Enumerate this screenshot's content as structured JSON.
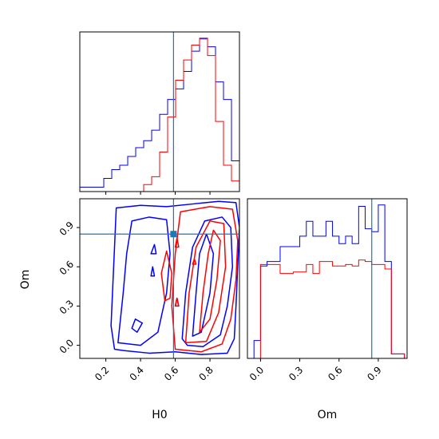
{
  "chart_data": {
    "type": "corner",
    "parameters": [
      "H0",
      "Om"
    ],
    "truth": {
      "H0": 0.59,
      "Om": 0.85
    },
    "colors": {
      "series_a": "#0000ff",
      "series_b": "#ff0000",
      "truth": "#1f77b4"
    },
    "panels": [
      {
        "id": "hist-H0",
        "type": "histogram-step",
        "xlim": [
          0.05,
          0.97
        ],
        "bin_edges": [
          0.05,
          0.096,
          0.142,
          0.188,
          0.234,
          0.28,
          0.326,
          0.372,
          0.418,
          0.464,
          0.51,
          0.556,
          0.602,
          0.648,
          0.694,
          0.74,
          0.786,
          0.832,
          0.878,
          0.924,
          0.97
        ],
        "series": [
          {
            "color_key": "series_a",
            "counts": [
              0.5,
              0.5,
              0.5,
              1.5,
              2.5,
              3,
              4,
              5,
              5.8,
              7,
              8.8,
              10.5,
              11.7,
              13.7,
              16,
              17.4,
              16.5,
              12.5,
              10.5,
              3.5
            ]
          },
          {
            "color_key": "series_b",
            "counts": [
              0,
              0,
              0,
              0,
              0,
              0,
              0,
              0,
              0.8,
              1.7,
              4.5,
              8.5,
              12.7,
              15,
              16.7,
              17.5,
              15.5,
              8,
              3,
              1.2
            ]
          }
        ],
        "x_ticks": [
          0.2,
          0.4,
          0.6,
          0.8
        ],
        "x_tick_labels_shown": false
      },
      {
        "id": "contour-H0-Om",
        "type": "contour",
        "xlim": [
          0.05,
          0.97
        ],
        "ylim": [
          -0.1,
          1.12
        ],
        "x_ticks": [
          0.2,
          0.4,
          0.6,
          0.8
        ],
        "x_tick_labels": [
          "0.2",
          "0.4",
          "0.6",
          "0.8"
        ],
        "y_ticks": [
          0.0,
          0.3,
          0.6,
          0.9
        ],
        "y_tick_labels": [
          "0.0",
          "0.3",
          "0.6",
          "0.9"
        ],
        "xlabel": "H0",
        "ylabel": "Om",
        "series": [
          {
            "color_key": "series_a",
            "contours": [
              [
                [
                  0.25,
                  -0.03
                ],
                [
                  0.23,
                  0.15
                ],
                [
                  0.24,
                  0.45
                ],
                [
                  0.25,
                  0.75
                ],
                [
                  0.26,
                  1.05
                ],
                [
                  0.4,
                  1.07
                ],
                [
                  0.55,
                  1.06
                ],
                [
                  0.7,
                  1.08
                ],
                [
                  0.85,
                  1.1
                ],
                [
                  0.95,
                  1.09
                ],
                [
                  0.97,
                  0.9
                ],
                [
                  0.96,
                  0.6
                ],
                [
                  0.95,
                  0.3
                ],
                [
                  0.94,
                  0.05
                ],
                [
                  0.9,
                  -0.06
                ],
                [
                  0.75,
                  -0.07
                ],
                [
                  0.6,
                  -0.05
                ],
                [
                  0.45,
                  -0.06
                ],
                [
                  0.3,
                  -0.04
                ],
                [
                  0.25,
                  -0.03
                ]
              ],
              [
                [
                  0.64,
                  0.05
                ],
                [
                  0.66,
                  0.4
                ],
                [
                  0.7,
                  0.75
                ],
                [
                  0.77,
                  0.95
                ],
                [
                  0.87,
                  0.98
                ],
                [
                  0.92,
                  0.9
                ],
                [
                  0.93,
                  0.6
                ],
                [
                  0.9,
                  0.3
                ],
                [
                  0.86,
                  0.08
                ],
                [
                  0.76,
                  -0.01
                ],
                [
                  0.67,
                  0.0
                ],
                [
                  0.64,
                  0.05
                ]
              ],
              [
                [
                  0.27,
                  0.02
                ],
                [
                  0.3,
                  0.4
                ],
                [
                  0.32,
                  0.7
                ],
                [
                  0.35,
                  0.95
                ],
                [
                  0.45,
                  0.98
                ],
                [
                  0.55,
                  0.96
                ],
                [
                  0.57,
                  0.7
                ],
                [
                  0.55,
                  0.4
                ],
                [
                  0.5,
                  0.1
                ],
                [
                  0.4,
                  0.0
                ],
                [
                  0.27,
                  0.02
                ]
              ],
              [
                [
                  0.7,
                  0.07
                ],
                [
                  0.72,
                  0.4
                ],
                [
                  0.74,
                  0.7
                ],
                [
                  0.78,
                  0.85
                ],
                [
                  0.82,
                  0.7
                ],
                [
                  0.8,
                  0.4
                ],
                [
                  0.75,
                  0.1
                ],
                [
                  0.7,
                  0.07
                ]
              ],
              [
                [
                  0.35,
                  0.13
                ],
                [
                  0.37,
                  0.2
                ],
                [
                  0.41,
                  0.17
                ],
                [
                  0.38,
                  0.1
                ],
                [
                  0.35,
                  0.13
                ]
              ],
              [
                [
                  0.46,
                  0.53
                ],
                [
                  0.47,
                  0.6
                ],
                [
                  0.48,
                  0.53
                ],
                [
                  0.46,
                  0.53
                ]
              ],
              [
                [
                  0.46,
                  0.7
                ],
                [
                  0.48,
                  0.77
                ],
                [
                  0.49,
                  0.7
                ],
                [
                  0.46,
                  0.7
                ]
              ],
              [
                [
                  0.6,
                  0.3
                ],
                [
                  0.61,
                  0.36
                ],
                [
                  0.62,
                  0.3
                ],
                [
                  0.6,
                  0.3
                ]
              ]
            ]
          },
          {
            "color_key": "series_b",
            "contours": [
              [
                [
                  0.6,
                  -0.03
                ],
                [
                  0.58,
                  0.3
                ],
                [
                  0.6,
                  0.7
                ],
                [
                  0.63,
                  1.02
                ],
                [
                  0.8,
                  1.06
                ],
                [
                  0.93,
                  1.04
                ],
                [
                  0.96,
                  0.8
                ],
                [
                  0.95,
                  0.5
                ],
                [
                  0.92,
                  0.2
                ],
                [
                  0.87,
                  0.01
                ],
                [
                  0.75,
                  -0.05
                ],
                [
                  0.6,
                  -0.03
                ]
              ],
              [
                [
                  0.66,
                  0.02
                ],
                [
                  0.68,
                  0.4
                ],
                [
                  0.72,
                  0.75
                ],
                [
                  0.8,
                  0.95
                ],
                [
                  0.88,
                  0.93
                ],
                [
                  0.89,
                  0.6
                ],
                [
                  0.85,
                  0.25
                ],
                [
                  0.78,
                  0.03
                ],
                [
                  0.66,
                  0.02
                ]
              ],
              [
                [
                  0.74,
                  0.1
                ],
                [
                  0.76,
                  0.4
                ],
                [
                  0.79,
                  0.7
                ],
                [
                  0.82,
                  0.88
                ],
                [
                  0.86,
                  0.8
                ],
                [
                  0.84,
                  0.5
                ],
                [
                  0.8,
                  0.2
                ],
                [
                  0.74,
                  0.1
                ]
              ],
              [
                [
                  0.54,
                  0.34
                ],
                [
                  0.52,
                  0.55
                ],
                [
                  0.55,
                  0.72
                ],
                [
                  0.58,
                  0.55
                ],
                [
                  0.57,
                  0.36
                ],
                [
                  0.54,
                  0.34
                ]
              ],
              [
                [
                  0.6,
                  0.3
                ],
                [
                  0.61,
                  0.36
                ],
                [
                  0.62,
                  0.3
                ],
                [
                  0.6,
                  0.3
                ]
              ],
              [
                [
                  0.7,
                  0.62
                ],
                [
                  0.71,
                  0.66
                ],
                [
                  0.72,
                  0.62
                ],
                [
                  0.7,
                  0.62
                ]
              ],
              [
                [
                  0.6,
                  0.75
                ],
                [
                  0.61,
                  0.82
                ],
                [
                  0.62,
                  0.75
                ],
                [
                  0.6,
                  0.75
                ]
              ]
            ]
          }
        ]
      },
      {
        "id": "hist-Om",
        "type": "histogram-step",
        "xlim": [
          -0.1,
          1.12
        ],
        "bin_edges": [
          -0.05,
          0.0,
          0.05,
          0.1,
          0.15,
          0.2,
          0.25,
          0.3,
          0.35,
          0.4,
          0.45,
          0.5,
          0.55,
          0.6,
          0.65,
          0.7,
          0.75,
          0.8,
          0.85,
          0.9,
          0.95,
          1.0,
          1.05,
          1.1
        ],
        "series": [
          {
            "color_key": "series_a",
            "counts": [
              1.2,
              6.2,
              6.5,
              6.5,
              7.5,
              7.5,
              7.5,
              8.2,
              9.2,
              8.2,
              8.2,
              9.2,
              8.2,
              7.7,
              8.2,
              7.7,
              10.2,
              8.7,
              8.5,
              10.3,
              6.5,
              0.3,
              0.3
            ]
          },
          {
            "color_key": "series_b",
            "counts": [
              0,
              6.3,
              6.3,
              6.3,
              5.7,
              5.7,
              5.8,
              5.8,
              6.3,
              5.7,
              6.5,
              6.5,
              6.2,
              6.2,
              6.3,
              6.2,
              6.6,
              6.5,
              6.3,
              6.3,
              6.0,
              0.3,
              0.3
            ]
          }
        ],
        "x_ticks": [
          0.0,
          0.3,
          0.6,
          0.9
        ],
        "x_tick_labels": [
          "0.0",
          "0.3",
          "0.6",
          "0.9"
        ],
        "xlabel": "Om"
      }
    ]
  }
}
